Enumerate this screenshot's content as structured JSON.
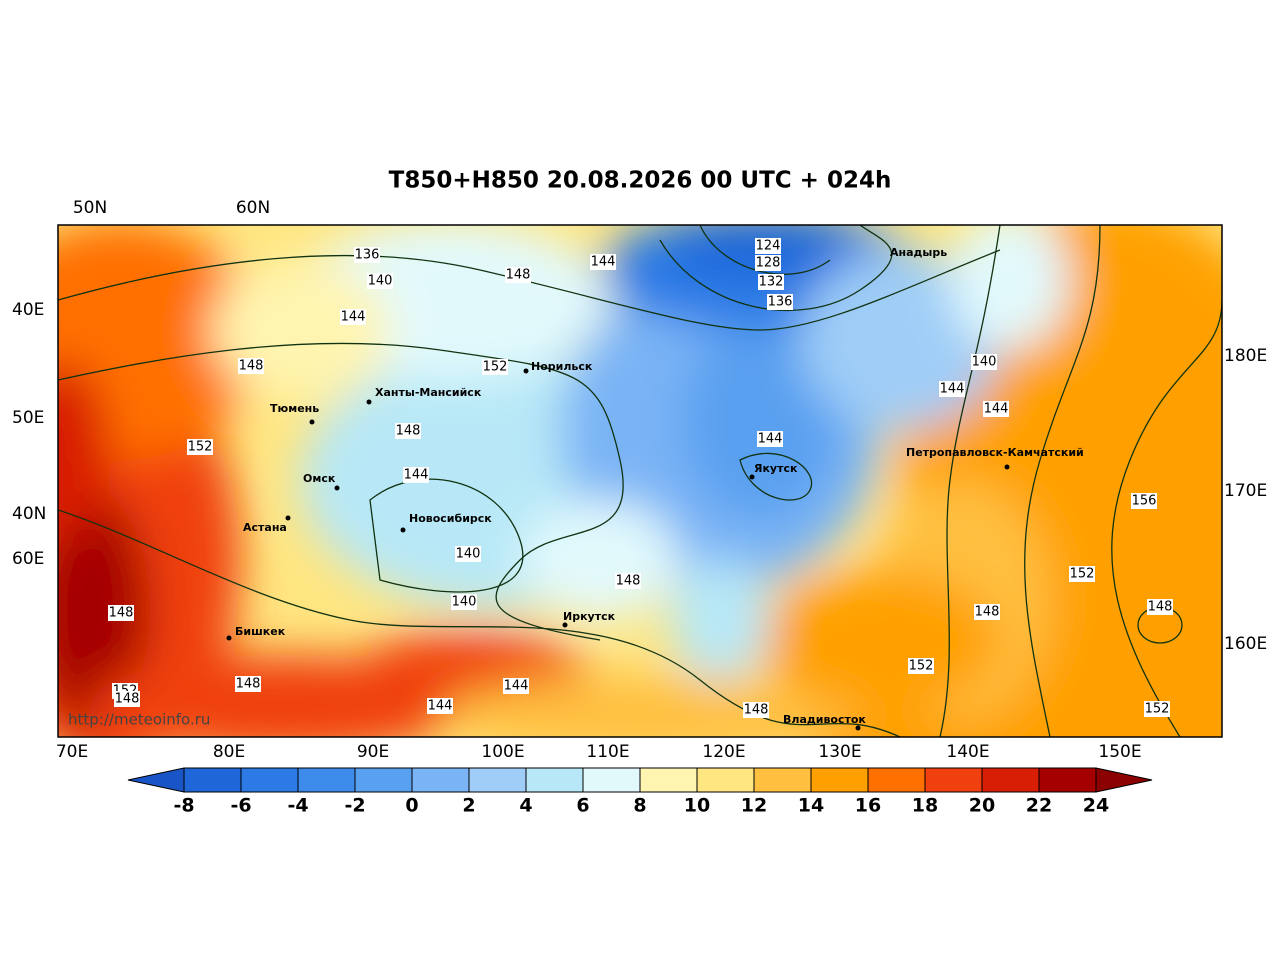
{
  "title": "T850+H850 20.08.2026 00 UTC + 024h",
  "top_labels": [
    "50N",
    "60N"
  ],
  "left_labels": [
    "40E",
    "50E",
    "40N",
    "60E"
  ],
  "right_labels": [
    "180E",
    "170E",
    "160E"
  ],
  "bottom_labels": [
    "70E",
    "80E",
    "90E",
    "100E",
    "110E",
    "120E",
    "130E",
    "140E",
    "150E"
  ],
  "colorbar": {
    "labels": [
      -8,
      -6,
      -4,
      -2,
      0,
      2,
      4,
      6,
      8,
      10,
      12,
      14,
      16,
      18,
      20,
      22,
      24
    ],
    "colors": [
      "#1a55c8",
      "#1f66d9",
      "#2b7ae6",
      "#3d8ceb",
      "#5aa0f0",
      "#7ab4f5",
      "#9fcdf7",
      "#b8e8f7",
      "#e2f9fc",
      "#fff5b0",
      "#ffe680",
      "#ffc040",
      "#ffa000",
      "#ff7000",
      "#f04010",
      "#d81e05",
      "#a50000",
      "#8b0000"
    ]
  },
  "cities": [
    "Анадырь",
    "Норильск",
    "Ханты-Мансийск",
    "Тюмень",
    "Омск",
    "Астана",
    "Новосибирск",
    "Якутск",
    "Петропавловск-Камчатский",
    "Бишкек",
    "Иркутск",
    "Владивосток"
  ],
  "contour_labels": [
    136,
    140,
    144,
    148,
    144,
    124,
    128,
    132,
    136,
    148,
    152,
    152,
    148,
    144,
    144,
    140,
    144,
    144,
    156,
    140,
    148,
    140,
    148,
    152,
    148,
    148,
    152,
    152,
    148,
    148,
    144,
    144,
    148,
    152
  ],
  "watermark": "http://meteoinfo.ru"
}
